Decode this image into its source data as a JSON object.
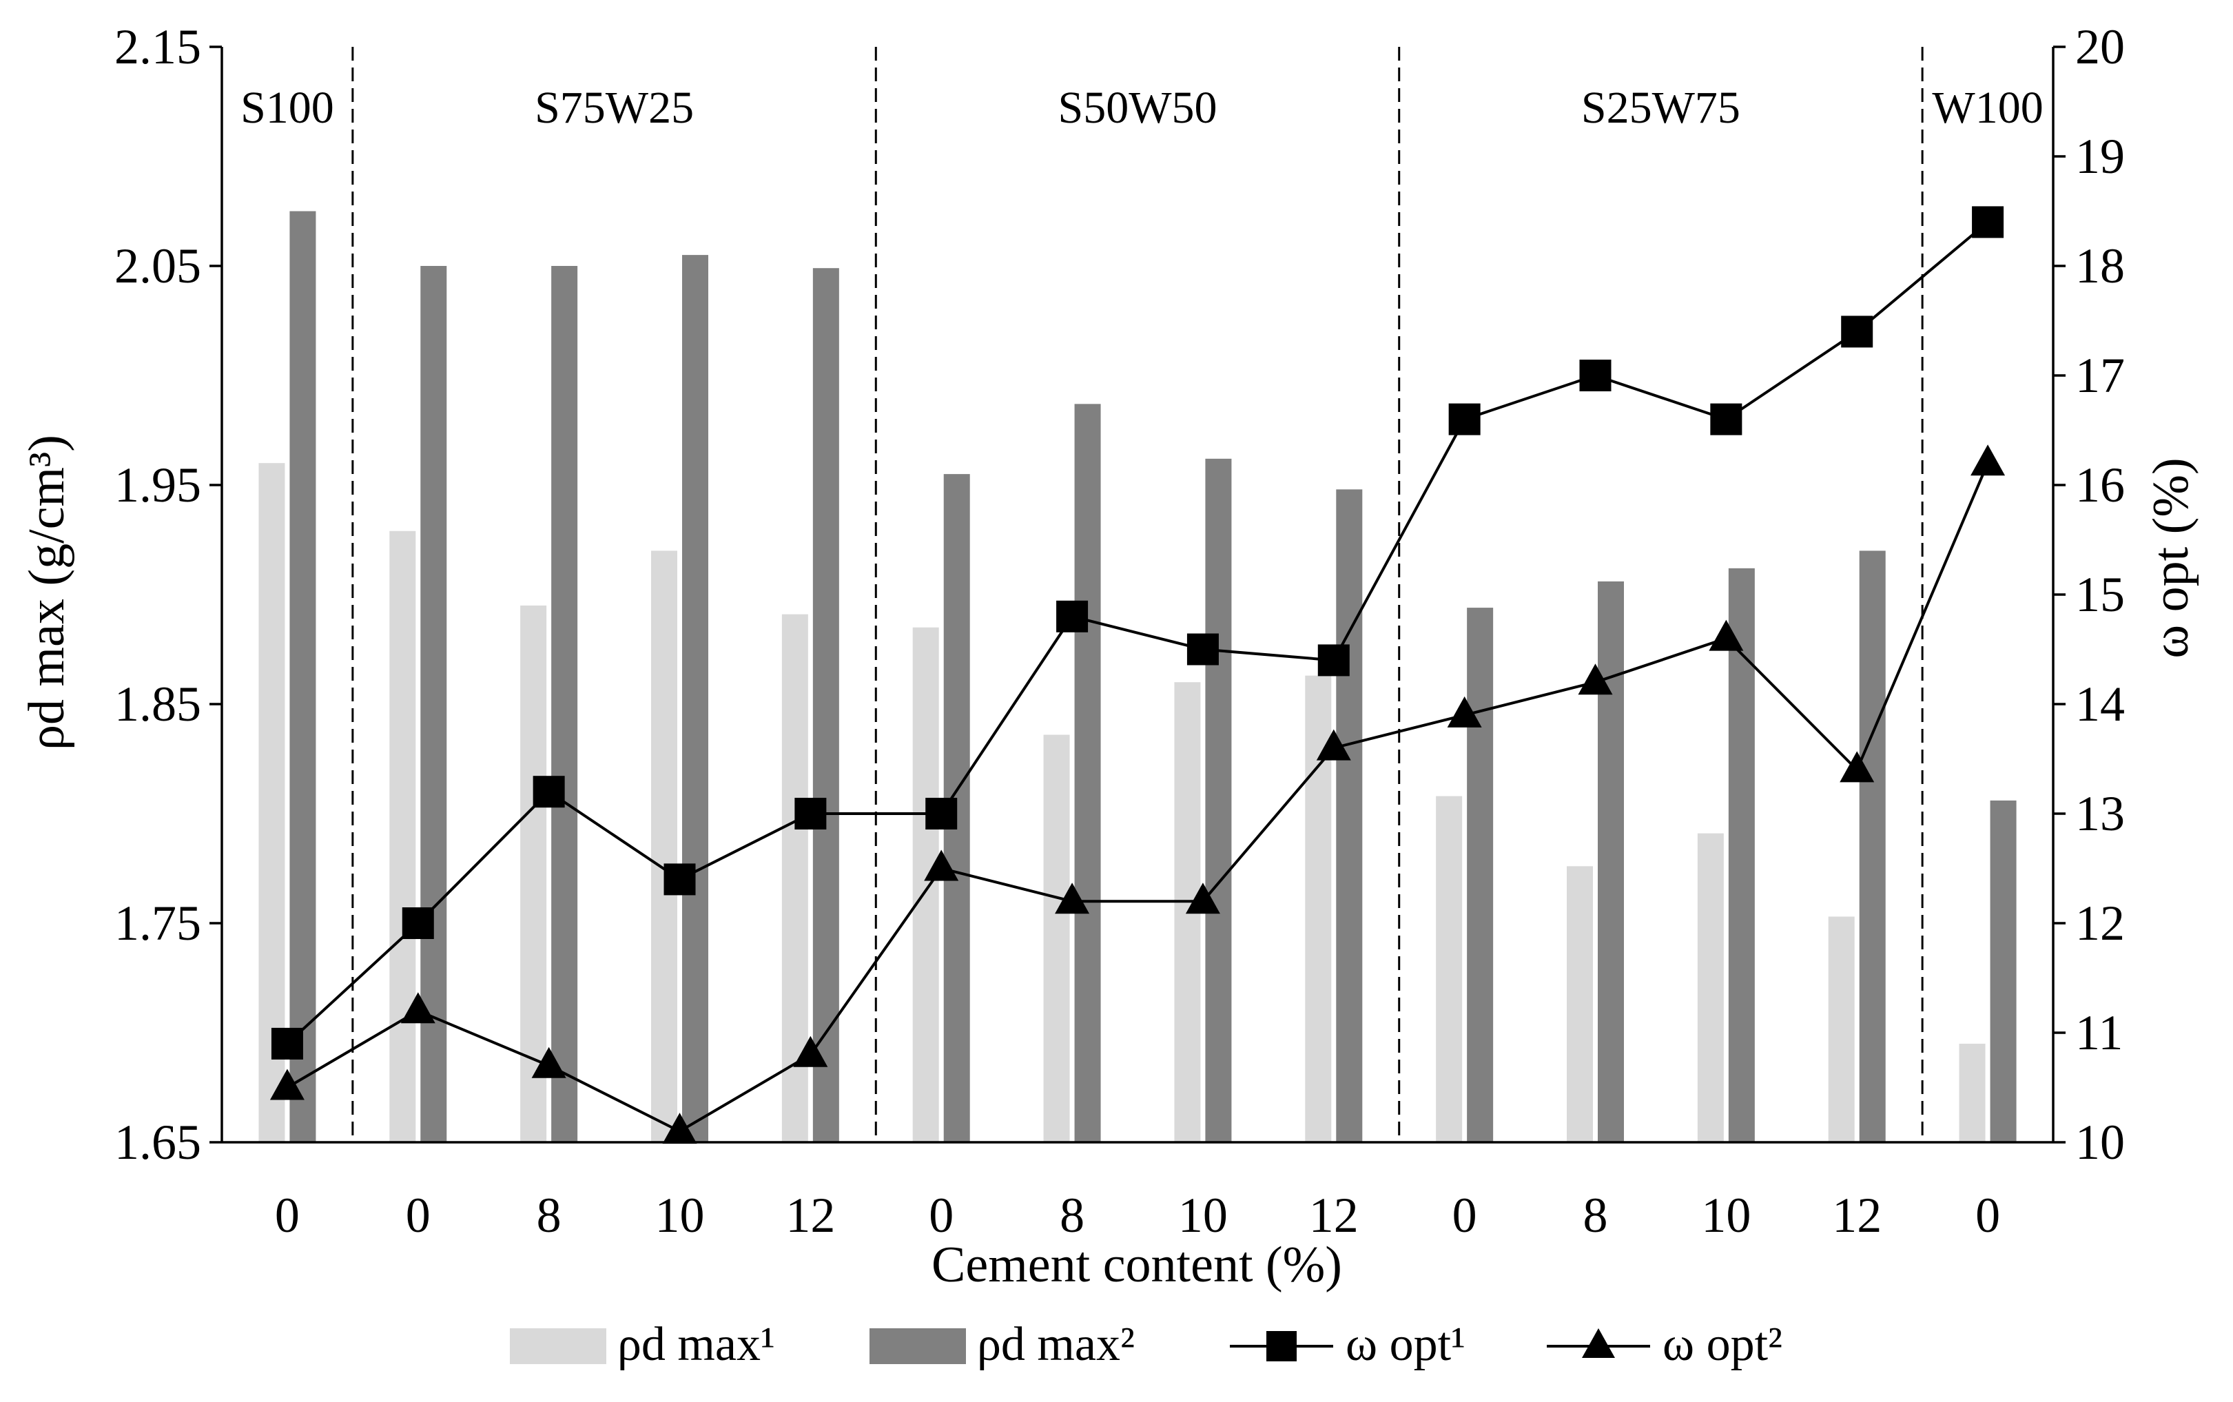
{
  "chart_data": {
    "type": "bar",
    "title": "",
    "xlabel": "Cement content (%)",
    "ylabel": "ρd max (g/cm³)",
    "y2label": "ω opt (%)",
    "ylim": [
      1.65,
      2.15
    ],
    "y2lim": [
      10,
      20
    ],
    "yticks": [
      "1.65",
      "1.75",
      "1.85",
      "1.95",
      "2.05",
      "2.15"
    ],
    "y2ticks": [
      "10",
      "11",
      "12",
      "13",
      "14",
      "15",
      "16",
      "17",
      "18",
      "19",
      "20"
    ],
    "categories": [
      "0",
      "0",
      "8",
      "10",
      "12",
      "0",
      "8",
      "10",
      "12",
      "0",
      "8",
      "10",
      "12",
      "0"
    ],
    "groups": [
      {
        "label": "S100",
        "start": 0,
        "end": 0
      },
      {
        "label": "S75W25",
        "start": 1,
        "end": 4
      },
      {
        "label": "S50W50",
        "start": 5,
        "end": 8
      },
      {
        "label": "S25W75",
        "start": 9,
        "end": 12
      },
      {
        "label": "W100",
        "start": 13,
        "end": 13
      }
    ],
    "series": [
      {
        "name": "ρd max¹",
        "kind": "bar",
        "color": "#d9d9d9",
        "axis": "left",
        "values": [
          1.96,
          1.929,
          1.895,
          1.92,
          1.891,
          1.885,
          1.836,
          1.86,
          1.863,
          1.808,
          1.776,
          1.791,
          1.753,
          1.695
        ]
      },
      {
        "name": "ρd max²",
        "kind": "bar",
        "color": "#808080",
        "axis": "left",
        "values": [
          2.075,
          2.05,
          2.05,
          2.055,
          2.049,
          1.955,
          1.987,
          1.962,
          1.948,
          1.894,
          1.906,
          1.912,
          1.92,
          1.806
        ]
      },
      {
        "name": "ω opt¹",
        "kind": "line",
        "marker": "square",
        "color": "#000000",
        "axis": "right",
        "values": [
          10.9,
          12.0,
          13.2,
          12.4,
          13.0,
          13.0,
          14.8,
          14.5,
          14.4,
          16.6,
          17.0,
          16.6,
          17.4,
          18.4
        ]
      },
      {
        "name": "ω opt²",
        "kind": "line",
        "marker": "triangle",
        "color": "#000000",
        "axis": "right",
        "values": [
          10.5,
          11.2,
          10.7,
          10.1,
          10.8,
          12.5,
          12.2,
          12.2,
          13.6,
          13.9,
          14.2,
          14.6,
          13.4,
          16.2
        ]
      }
    ],
    "legend": "bottom",
    "grid": false
  }
}
